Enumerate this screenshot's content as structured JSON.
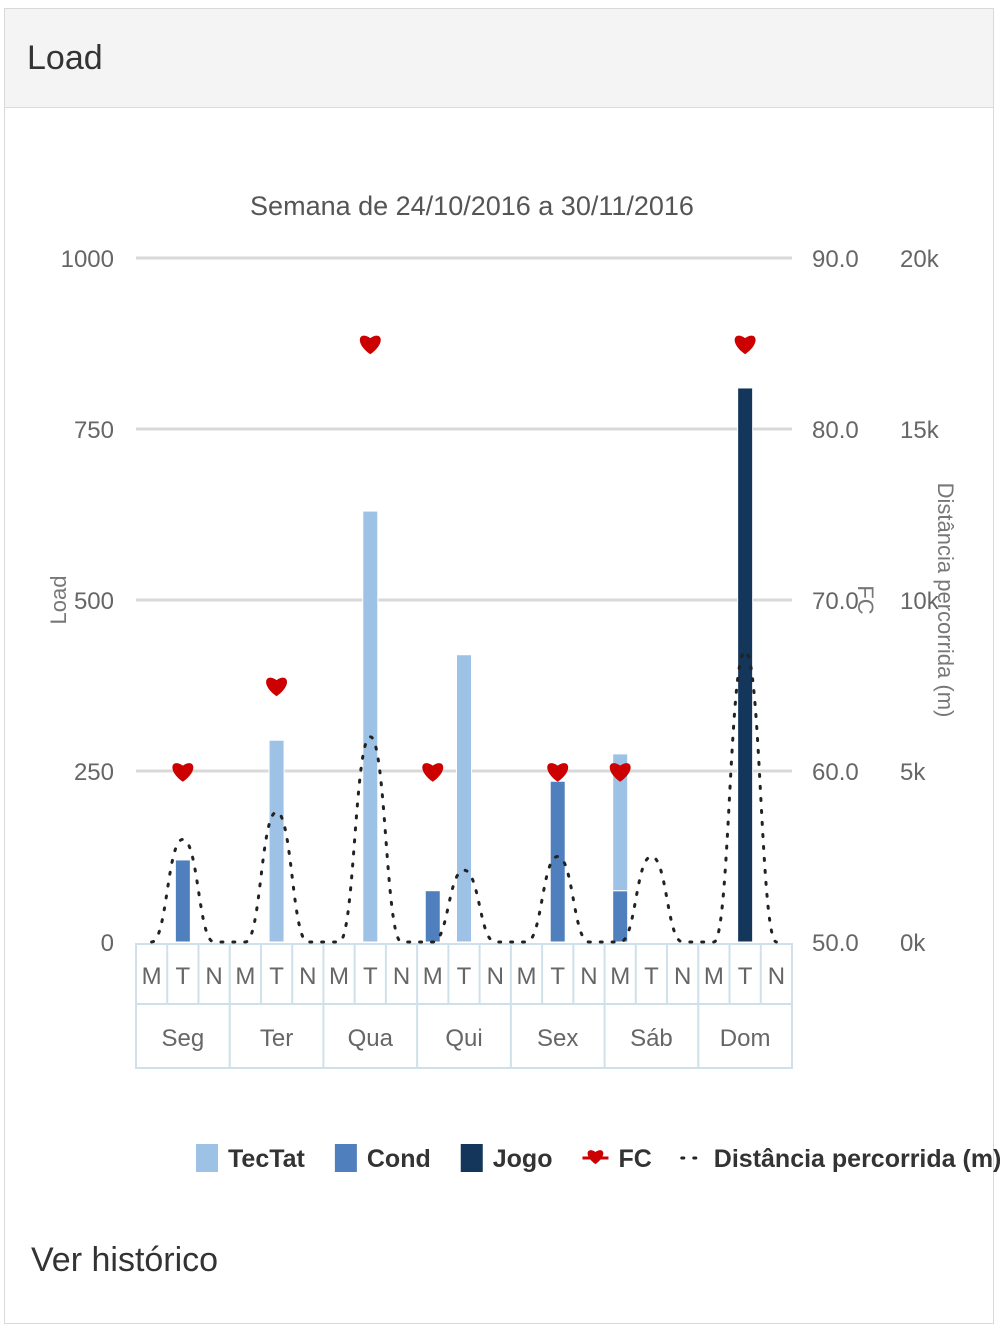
{
  "card": {
    "title": "Load",
    "history_link": "Ver histórico"
  },
  "colors": {
    "tectat": "#9dc2e6",
    "cond": "#4f80bd",
    "jogo": "#13365a",
    "fc": "#cc0000",
    "distance": "#222222",
    "grid": "#d9d9d9",
    "axis_text": "#666666"
  },
  "chart_data": {
    "type": "bar",
    "title": "Semana de 24/10/2016 a 30/11/2016",
    "ylabel": "Load",
    "y2label": "FC",
    "y3label": "Distância percorrida (m)",
    "ylim": [
      0,
      1000
    ],
    "y2lim": [
      50,
      90
    ],
    "y3lim": [
      0,
      20000
    ],
    "yticks": [
      "0",
      "250",
      "500",
      "750",
      "1000"
    ],
    "y2ticks": [
      "50.0",
      "60.0",
      "70.0",
      "80.0",
      "90.0"
    ],
    "y3ticks": [
      "0k",
      "5k",
      "10k",
      "15k",
      "20k"
    ],
    "days": [
      "Seg",
      "Ter",
      "Qua",
      "Qui",
      "Sex",
      "Sáb",
      "Dom"
    ],
    "periods": [
      "M",
      "T",
      "N"
    ],
    "series": [
      {
        "name": "TecTat",
        "values": [
          0,
          0,
          0,
          0,
          295,
          0,
          0,
          630,
          0,
          0,
          420,
          0,
          0,
          0,
          0,
          200,
          0,
          0,
          0,
          0,
          0
        ]
      },
      {
        "name": "Cond",
        "values": [
          0,
          120,
          0,
          0,
          0,
          0,
          0,
          0,
          0,
          75,
          0,
          0,
          0,
          235,
          0,
          75,
          0,
          0,
          0,
          0,
          0
        ]
      },
      {
        "name": "Jogo",
        "values": [
          0,
          0,
          0,
          0,
          0,
          0,
          0,
          0,
          0,
          0,
          0,
          0,
          0,
          0,
          0,
          0,
          0,
          0,
          0,
          810,
          0
        ]
      }
    ],
    "fc": [
      null,
      60,
      null,
      null,
      65,
      null,
      null,
      85,
      null,
      60,
      null,
      null,
      null,
      60,
      null,
      60,
      null,
      null,
      null,
      85,
      null
    ],
    "distance": [
      0,
      3000,
      0,
      0,
      3800,
      0,
      0,
      6000,
      0,
      0,
      2100,
      0,
      0,
      2500,
      0,
      0,
      2500,
      0,
      0,
      8500,
      0
    ],
    "legend": {
      "position": "bottom",
      "items": [
        "TecTat",
        "Cond",
        "Jogo",
        "FC",
        "Distância percorrida (m)"
      ]
    }
  }
}
